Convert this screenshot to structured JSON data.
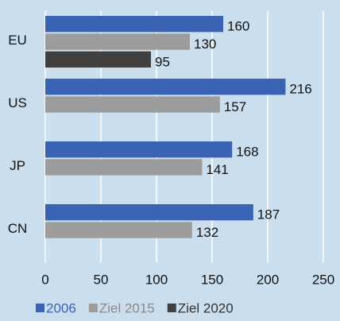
{
  "chart_data": {
    "type": "barh",
    "categories": [
      "EU",
      "US",
      "JP",
      "CN"
    ],
    "series": [
      {
        "name": "2006",
        "color": "#3a63b3",
        "values": [
          160,
          216,
          168,
          187
        ]
      },
      {
        "name": "Ziel 2015",
        "color": "#9c9c9c",
        "values": [
          130,
          157,
          141,
          132
        ]
      },
      {
        "name": "Ziel 2020",
        "color": "#404040",
        "values": [
          95,
          null,
          null,
          null
        ]
      }
    ],
    "xlim": [
      0,
      250
    ],
    "xticks": [
      0,
      50,
      100,
      150,
      200,
      250
    ],
    "grid": true,
    "legend": "bottom"
  }
}
